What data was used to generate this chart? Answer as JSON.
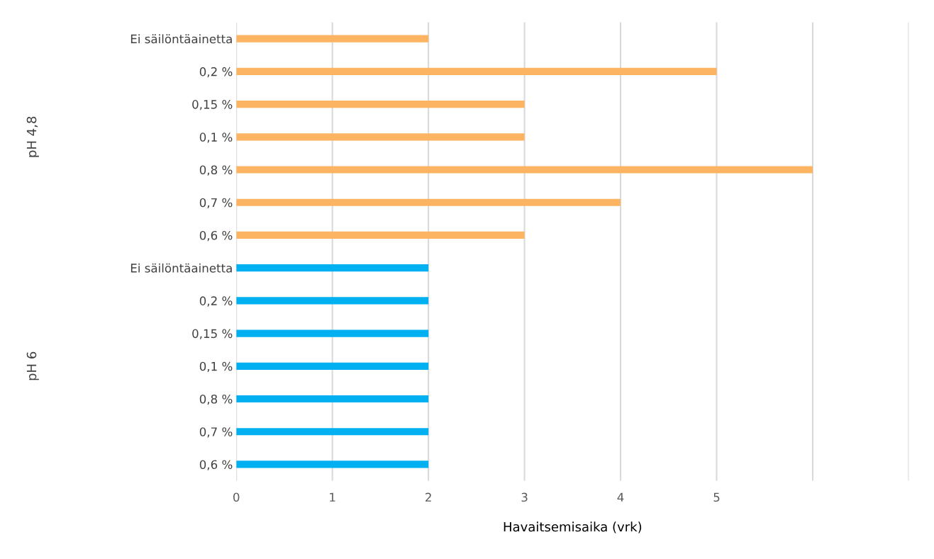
{
  "chart_data": {
    "type": "bar",
    "orientation": "horizontal",
    "xlabel": "Havaitsemisaika (vrk)",
    "categories": [
      "Ei säilöntäainetta",
      "0,2 %",
      "0,15 %",
      "0,1 %",
      "0,8 %",
      "0,7 %",
      "0,6 %",
      "Ei säilöntäainetta",
      "0,2 %",
      "0,15 %",
      "0,1 %",
      "0,8 %",
      "0,7 %",
      "0,6 %"
    ],
    "series": [
      {
        "color": "#fdb462",
        "values": [
          2,
          5,
          3,
          3,
          6,
          4,
          3,
          null,
          null,
          null,
          null,
          null,
          null,
          null
        ]
      },
      {
        "color": "#00b0f0",
        "values": [
          null,
          null,
          null,
          null,
          null,
          null,
          null,
          2,
          2,
          2,
          2,
          2,
          2,
          2
        ]
      }
    ],
    "xlim": [
      0,
      7
    ],
    "xticks": [
      0,
      1,
      2,
      3,
      4,
      5,
      {
        "value": 6,
        "label": null
      },
      {
        "value": 7,
        "label": null
      }
    ],
    "grid": "x",
    "legend": false,
    "annotations": [
      "pH 4,8",
      "pH 6"
    ]
  }
}
